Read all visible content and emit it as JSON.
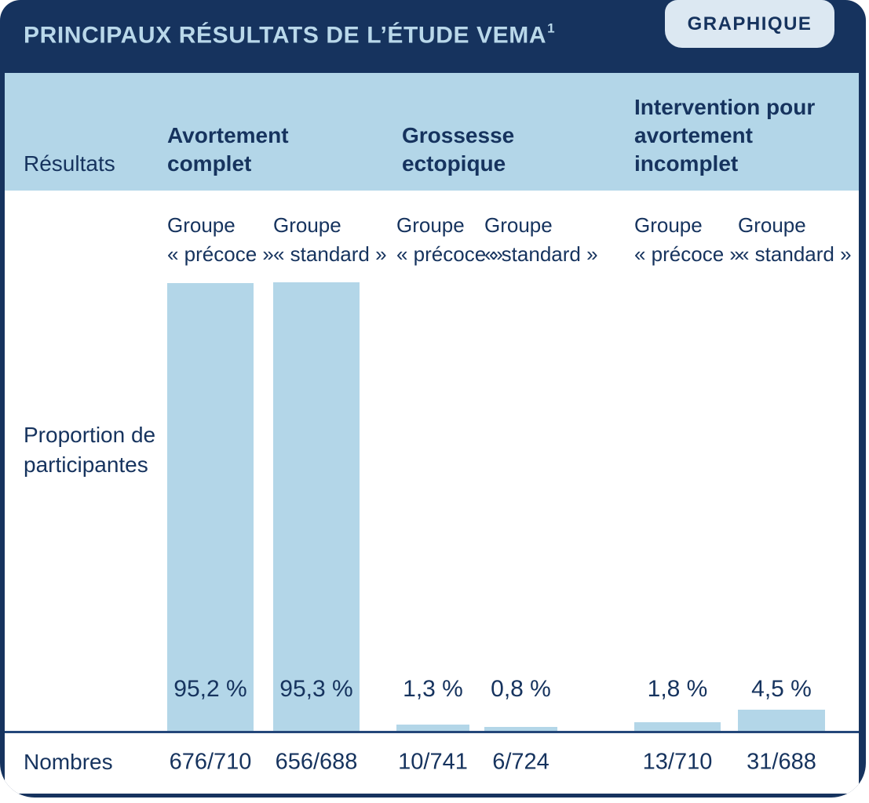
{
  "header": {
    "title": "PRINCIPAUX RÉSULTATS DE L’ÉTUDE VEMA",
    "title_footnote_marker": "1",
    "badge_label": "GRAPHIQUE"
  },
  "table": {
    "corner_label": "Résultats",
    "proportion_row_label": "Proportion de participantes",
    "numbers_row_label": "Nombres"
  },
  "colors": {
    "navy": "#16335E",
    "light_blue": "#B3D6E8",
    "badge_blue": "#DCE8F2",
    "title_text": "#B9D8EA",
    "separator": "#24477A"
  },
  "chart_data": {
    "type": "bar",
    "title": "PRINCIPAUX RÉSULTATS DE L’ÉTUDE VEMA",
    "title_footnote_marker": "1",
    "ylabel": "Proportion de participantes",
    "ylim": [
      0,
      100
    ],
    "grid": false,
    "legend_position": "none",
    "groups": [
      {
        "label": "Avortement complet",
        "columns": [
          0,
          1
        ]
      },
      {
        "label": "Grossesse ectopique",
        "columns": [
          2,
          3
        ]
      },
      {
        "label": "Intervention pour avortement incomplet",
        "columns": [
          4,
          5
        ]
      }
    ],
    "categories": [
      "Groupe « précoce »",
      "Groupe « standard »",
      "Groupe « précoce »",
      "Groupe « standard »",
      "Groupe « précoce »",
      "Groupe « standard »"
    ],
    "categories_display": [
      "Groupe\n« précoce »",
      "Groupe\n« standard »",
      "Groupe\n« précoce »",
      "Groupe\n« standard »",
      "Groupe\n« précoce »",
      "Groupe\n« standard »"
    ],
    "values": [
      95.2,
      95.3,
      1.3,
      0.8,
      1.8,
      4.5
    ],
    "value_labels": [
      "95,2 %",
      "95,3 %",
      "1,3 %",
      "0,8 %",
      "1,8 %",
      "4,5 %"
    ],
    "counts": [
      "676/710",
      "656/688",
      "10/741",
      "6/724",
      "13/710",
      "31/688"
    ],
    "counts_row_label": "Nombres"
  }
}
